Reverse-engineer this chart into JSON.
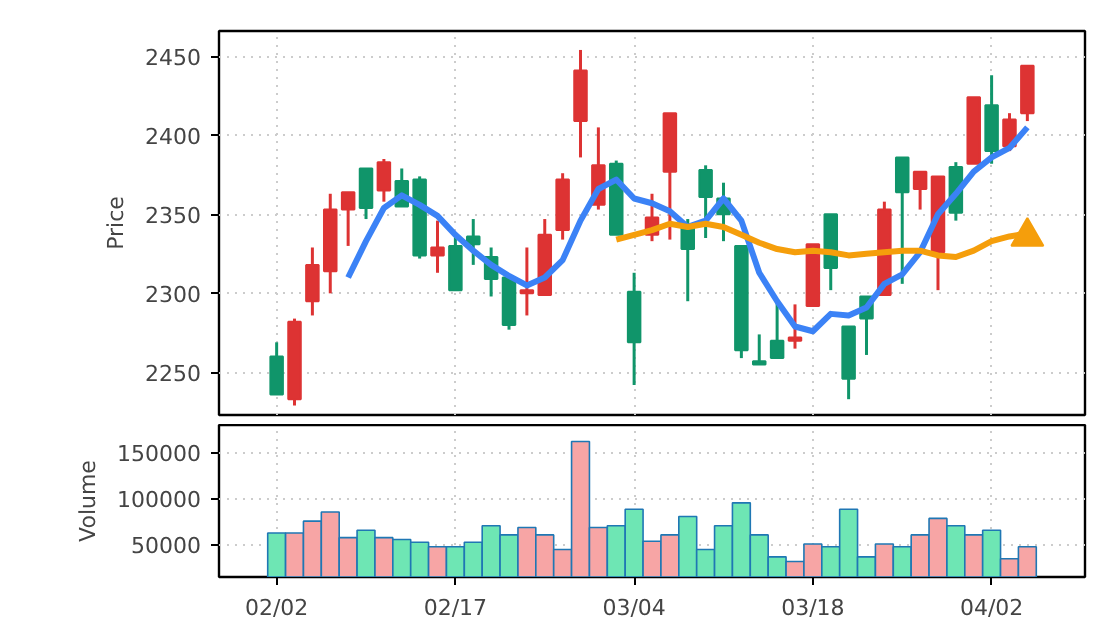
{
  "chart_data": [
    {
      "type": "candlestick",
      "ylabel": "Price",
      "categories": [
        null,
        null,
        null,
        null,
        null,
        null,
        null,
        null,
        null,
        null,
        null,
        null,
        null,
        null,
        null,
        null,
        null,
        null,
        null,
        null,
        null,
        null,
        null,
        null,
        null,
        null,
        null,
        null,
        null,
        null,
        null,
        null,
        null,
        null,
        null,
        null,
        null,
        null,
        null,
        null,
        null,
        null,
        null
      ],
      "ohlc": [
        [
          2260,
          2269,
          2236,
          2236
        ],
        [
          2233,
          2284,
          2229,
          2282
        ],
        [
          2295,
          2329,
          2286,
          2318
        ],
        [
          2314,
          2363,
          2300,
          2353
        ],
        [
          2353,
          2364,
          2330,
          2364
        ],
        [
          2379,
          2379,
          2347,
          2354
        ],
        [
          2365,
          2385,
          2358,
          2383
        ],
        [
          2371,
          2379,
          2355,
          2355
        ],
        [
          2372,
          2374,
          2322,
          2324
        ],
        [
          2324,
          2346,
          2313,
          2329
        ],
        [
          2330,
          2337,
          2302,
          2302
        ],
        [
          2336,
          2347,
          2318,
          2331
        ],
        [
          2323,
          2329,
          2298,
          2309
        ],
        [
          2310,
          2310,
          2277,
          2280
        ],
        [
          2300,
          2329,
          2286,
          2302
        ],
        [
          2299,
          2347,
          2299,
          2337
        ],
        [
          2340,
          2376,
          2334,
          2372
        ],
        [
          2409,
          2454,
          2386,
          2441
        ],
        [
          2356,
          2405,
          2353,
          2381
        ],
        [
          2382,
          2384,
          2337,
          2337
        ],
        [
          2301,
          2313,
          2242,
          2269
        ],
        [
          2337,
          2363,
          2333,
          2348
        ],
        [
          2377,
          2414,
          2334,
          2414
        ],
        [
          2342,
          2347,
          2295,
          2328
        ],
        [
          2378,
          2381,
          2335,
          2361
        ],
        [
          2360,
          2370,
          2333,
          2350
        ],
        [
          2330,
          2330,
          2259,
          2264
        ],
        [
          2257,
          2274,
          2255,
          2255
        ],
        [
          2270,
          2295,
          2259,
          2259
        ],
        [
          2270,
          2293,
          2265,
          2272
        ],
        [
          2292,
          2331,
          2292,
          2331
        ],
        [
          2350,
          2350,
          2302,
          2316
        ],
        [
          2279,
          2279,
          2233,
          2246
        ],
        [
          2298,
          2298,
          2261,
          2284
        ],
        [
          2299,
          2358,
          2299,
          2353
        ],
        [
          2386,
          2386,
          2306,
          2364
        ],
        [
          2366,
          2377,
          2353,
          2377
        ],
        [
          2326,
          2374,
          2302,
          2374
        ],
        [
          2380,
          2383,
          2346,
          2351
        ],
        [
          2382,
          2424,
          2382,
          2424
        ],
        [
          2419,
          2438,
          2382,
          2390
        ],
        [
          2393,
          2414,
          2390,
          2410
        ],
        [
          2414,
          2444,
          2409,
          2444
        ]
      ],
      "colors": [
        "#10956a",
        "#dd3333",
        "#dd3333",
        "#dd3333",
        "#dd3333",
        "#10956a",
        "#dd3333",
        "#10956a",
        "#10956a",
        "#dd3333",
        "#10956a",
        "#10956a",
        "#10956a",
        "#10956a",
        "#dd3333",
        "#dd3333",
        "#dd3333",
        "#dd3333",
        "#dd3333",
        "#10956a",
        "#10956a",
        "#dd3333",
        "#dd3333",
        "#10956a",
        "#10956a",
        "#10956a",
        "#10956a",
        "#10956a",
        "#10956a",
        "#dd3333",
        "#dd3333",
        "#10956a",
        "#10956a",
        "#10956a",
        "#dd3333",
        "#10956a",
        "#dd3333",
        "#dd3333",
        "#10956a",
        "#dd3333",
        "#10956a",
        "#dd3333",
        "#dd3333"
      ],
      "series": [
        {
          "type": "line",
          "color": "#3b82f6",
          "values": [
            null,
            null,
            null,
            null,
            2310,
            2333,
            2354,
            2362,
            2356,
            2349,
            2337,
            2327,
            2318,
            2311,
            2305,
            2310,
            2321,
            2346,
            2366,
            2372,
            2360,
            2357,
            2352,
            2342,
            2346,
            2360,
            2346,
            2313,
            2295,
            2279,
            2276,
            2287,
            2286,
            2291,
            2306,
            2312,
            2326,
            2350,
            2363,
            2377,
            2386,
            2392,
            2405
          ]
        },
        {
          "type": "line",
          "color": "#f59e0b",
          "values": [
            null,
            null,
            null,
            null,
            null,
            null,
            null,
            null,
            null,
            null,
            null,
            null,
            null,
            null,
            null,
            null,
            null,
            null,
            null,
            2334,
            2337,
            2340,
            2344,
            2342,
            2344,
            2342,
            2337,
            2332,
            2328,
            2326,
            2327,
            2326,
            2324,
            2325,
            2326,
            2327,
            2327,
            2324,
            2323,
            2327,
            2333,
            2336,
            2338
          ]
        },
        {
          "type": "scatter",
          "color": "#f59e0b",
          "marker": "triangle",
          "values": [
            null,
            null,
            null,
            null,
            null,
            null,
            null,
            null,
            null,
            null,
            null,
            null,
            null,
            null,
            null,
            null,
            null,
            null,
            null,
            null,
            null,
            null,
            null,
            null,
            null,
            null,
            null,
            null,
            null,
            null,
            null,
            null,
            null,
            null,
            null,
            null,
            null,
            null,
            null,
            null,
            null,
            null,
            2336
          ]
        }
      ],
      "ylim": [
        2223,
        2466
      ],
      "yticks": [
        2250,
        2300,
        2350,
        2400,
        2450
      ],
      "grid": true,
      "tick_labels": "y"
    },
    {
      "type": "bar",
      "ylabel": "Volume",
      "categories": [
        "02/02",
        null,
        null,
        null,
        null,
        null,
        null,
        null,
        null,
        null,
        "02/17",
        null,
        null,
        null,
        null,
        null,
        null,
        null,
        null,
        null,
        "03/04",
        null,
        null,
        null,
        null,
        null,
        null,
        null,
        null,
        null,
        "03/18",
        null,
        null,
        null,
        null,
        null,
        null,
        null,
        null,
        null,
        "04/02",
        null,
        null
      ],
      "values": [
        62000,
        62000,
        75000,
        85000,
        57000,
        65000,
        57000,
        55000,
        52000,
        47000,
        47000,
        52000,
        70000,
        60000,
        68000,
        60000,
        44000,
        162000,
        68000,
        70000,
        88000,
        53000,
        60000,
        80000,
        44000,
        70000,
        95000,
        60000,
        36000,
        31000,
        50000,
        47000,
        88000,
        36000,
        50000,
        47000,
        60000,
        78000,
        70000,
        60000,
        65000,
        34000,
        47000
      ],
      "colors": [
        "#6ee6b4",
        "#f7a5a5",
        "#f7a5a5",
        "#f7a5a5",
        "#f7a5a5",
        "#6ee6b4",
        "#f7a5a5",
        "#6ee6b4",
        "#6ee6b4",
        "#f7a5a5",
        "#6ee6b4",
        "#6ee6b4",
        "#6ee6b4",
        "#6ee6b4",
        "#f7a5a5",
        "#f7a5a5",
        "#f7a5a5",
        "#f7a5a5",
        "#f7a5a5",
        "#6ee6b4",
        "#6ee6b4",
        "#f7a5a5",
        "#f7a5a5",
        "#6ee6b4",
        "#6ee6b4",
        "#6ee6b4",
        "#6ee6b4",
        "#6ee6b4",
        "#6ee6b4",
        "#f7a5a5",
        "#f7a5a5",
        "#6ee6b4",
        "#6ee6b4",
        "#6ee6b4",
        "#f7a5a5",
        "#6ee6b4",
        "#f7a5a5",
        "#f7a5a5",
        "#6ee6b4",
        "#f7a5a5",
        "#6ee6b4",
        "#f7a5a5",
        "#f7a5a5"
      ],
      "ylim": [
        14000,
        180000
      ],
      "yticks": [
        50000,
        100000,
        150000
      ],
      "grid": true
    }
  ]
}
